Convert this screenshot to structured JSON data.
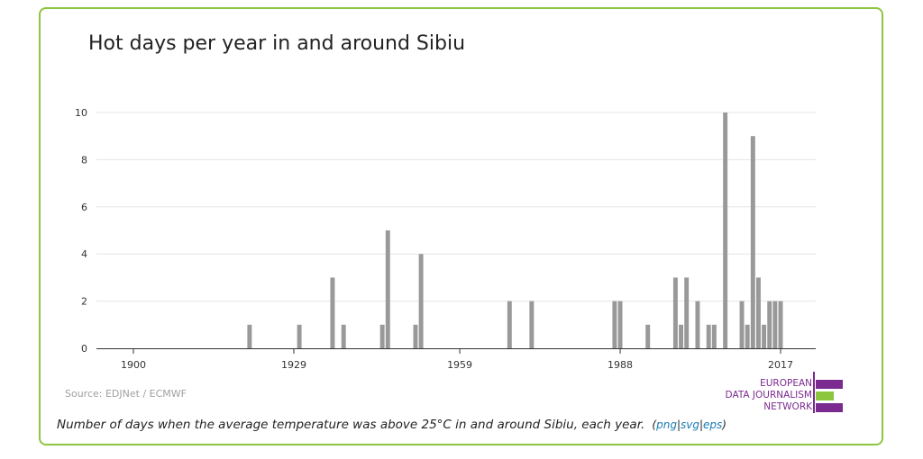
{
  "title": "Hot days per year in and around Sibiu",
  "source": "Source: EDJNet / ECMWF",
  "caption": {
    "text": "Number of days when the average temperature was above 25°C in and around Sibiu, each year.",
    "links": [
      "png",
      "svg",
      "eps"
    ]
  },
  "logo": {
    "lines": [
      "EUROPEAN",
      "DATA JOURNALISM",
      "NETWORK"
    ],
    "colors": [
      "#7b2a8f",
      "#8cc63f",
      "#7b2a8f"
    ]
  },
  "colors": {
    "border": "#8cc63f",
    "bar": "#999999",
    "grid": "#e6e6e6",
    "axis": "#333333"
  },
  "chart_data": {
    "type": "bar",
    "xticks": [
      1900,
      1929,
      1959,
      1988,
      2017
    ],
    "yticks": [
      0,
      2,
      4,
      6,
      8,
      10
    ],
    "xlim": [
      1900,
      2017
    ],
    "ylim": [
      0,
      10
    ],
    "grid": true,
    "points": [
      {
        "x": 1921,
        "y": 1
      },
      {
        "x": 1930,
        "y": 1
      },
      {
        "x": 1936,
        "y": 3
      },
      {
        "x": 1938,
        "y": 1
      },
      {
        "x": 1945,
        "y": 1
      },
      {
        "x": 1946,
        "y": 5
      },
      {
        "x": 1951,
        "y": 1
      },
      {
        "x": 1952,
        "y": 4
      },
      {
        "x": 1968,
        "y": 2
      },
      {
        "x": 1972,
        "y": 2
      },
      {
        "x": 1987,
        "y": 2
      },
      {
        "x": 1988,
        "y": 2
      },
      {
        "x": 1993,
        "y": 1
      },
      {
        "x": 1998,
        "y": 3
      },
      {
        "x": 1999,
        "y": 1
      },
      {
        "x": 2000,
        "y": 3
      },
      {
        "x": 2002,
        "y": 2
      },
      {
        "x": 2004,
        "y": 1
      },
      {
        "x": 2005,
        "y": 1
      },
      {
        "x": 2007,
        "y": 10
      },
      {
        "x": 2010,
        "y": 2
      },
      {
        "x": 2011,
        "y": 1
      },
      {
        "x": 2012,
        "y": 9
      },
      {
        "x": 2013,
        "y": 3
      },
      {
        "x": 2014,
        "y": 1
      },
      {
        "x": 2015,
        "y": 2
      },
      {
        "x": 2016,
        "y": 2
      },
      {
        "x": 2017,
        "y": 2
      }
    ]
  }
}
